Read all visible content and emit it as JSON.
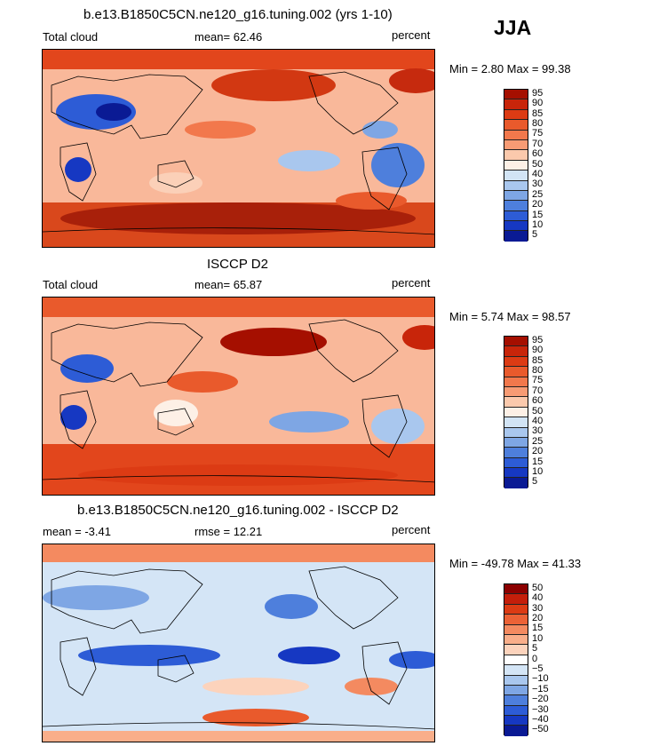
{
  "season": "JJA",
  "panels": [
    {
      "title": "b.e13.B1850C5CN.ne120_g16.tuning.002 (yrs 1-10)",
      "left_label": "Total cloud",
      "mid_label": "mean=  62.46",
      "right_label": "percent",
      "minmax": "Min =    2.80 Max =   99.38",
      "levels": [
        "95",
        "90",
        "85",
        "80",
        "75",
        "70",
        "60",
        "50",
        "40",
        "30",
        "25",
        "20",
        "15",
        "10",
        "5"
      ],
      "colors": [
        "#a50f00",
        "#c8250a",
        "#dc3b14",
        "#e95a2c",
        "#f2784c",
        "#f79b74",
        "#fbc9ac",
        "#fdf0e6",
        "#d2e4f5",
        "#a9c7ee",
        "#7ea6e4",
        "#4e7fdc",
        "#2d5cd6",
        "#1638c2",
        "#0a1a94"
      ]
    },
    {
      "title": "ISCCP D2",
      "left_label": "Total cloud",
      "mid_label": "mean=  65.87",
      "right_label": "percent",
      "minmax": "Min =    5.74 Max =   98.57",
      "levels": [
        "95",
        "90",
        "85",
        "80",
        "75",
        "70",
        "60",
        "50",
        "40",
        "30",
        "25",
        "20",
        "15",
        "10",
        "5"
      ],
      "colors": [
        "#a50f00",
        "#c8250a",
        "#dc3b14",
        "#e95a2c",
        "#f2784c",
        "#f79b74",
        "#fbc9ac",
        "#fdf0e6",
        "#d2e4f5",
        "#a9c7ee",
        "#7ea6e4",
        "#4e7fdc",
        "#2d5cd6",
        "#1638c2",
        "#0a1a94"
      ]
    },
    {
      "title": "b.e13.B1850C5CN.ne120_g16.tuning.002 - ISCCP D2",
      "left_label": "mean =   -3.41",
      "mid_label": "rmse =   12.21",
      "right_label": "percent",
      "minmax": "Min = -49.78 Max =   41.33",
      "levels": [
        "50",
        "40",
        "30",
        "20",
        "15",
        "10",
        "5",
        "0",
        "-5",
        "-10",
        "-15",
        "-20",
        "-30",
        "-40",
        "-50"
      ],
      "colors": [
        "#8c0000",
        "#c41e0a",
        "#dc3b14",
        "#ec6236",
        "#f48a60",
        "#f9ae8a",
        "#fcd3bc",
        "#ffffff",
        "#d4e5f6",
        "#a9c7ee",
        "#7ea6e4",
        "#4e7fdc",
        "#2d5cd6",
        "#1638c2",
        "#0a1a94"
      ]
    }
  ]
}
